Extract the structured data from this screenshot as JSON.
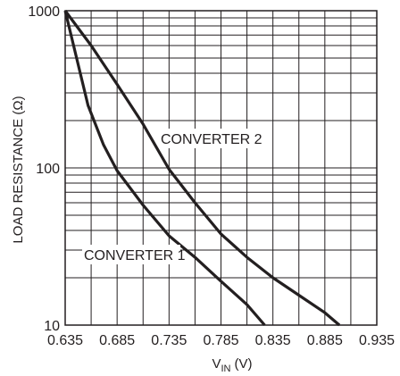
{
  "chart_data": {
    "type": "line",
    "title": "",
    "xlabel": {
      "main": "V",
      "sub": "IN",
      "unit": "(V)"
    },
    "ylabel": "LOAD RESISTANCE (Ω)",
    "xlim": [
      0.635,
      0.935
    ],
    "ylim": [
      10,
      1000
    ],
    "y_scale": "log",
    "grid": true,
    "x_ticks": [
      0.635,
      0.685,
      0.735,
      0.785,
      0.835,
      0.885,
      0.935
    ],
    "x_tick_labels": [
      "0.635",
      "0.685",
      "0.735",
      "0.785",
      "0.835",
      "0.885",
      "0.935"
    ],
    "y_tick_labels": [
      {
        "value": 10,
        "label": "10"
      },
      {
        "value": 100,
        "label": "100"
      },
      {
        "value": 1000,
        "label": "1000"
      }
    ],
    "series": [
      {
        "name": "CONVERTER 1",
        "points": [
          {
            "x": 0.635,
            "y": 1000
          },
          {
            "x": 0.646,
            "y": 500
          },
          {
            "x": 0.657,
            "y": 250
          },
          {
            "x": 0.672,
            "y": 140
          },
          {
            "x": 0.685,
            "y": 96
          },
          {
            "x": 0.71,
            "y": 58
          },
          {
            "x": 0.735,
            "y": 37
          },
          {
            "x": 0.76,
            "y": 27
          },
          {
            "x": 0.785,
            "y": 19
          },
          {
            "x": 0.81,
            "y": 13.5
          },
          {
            "x": 0.827,
            "y": 10
          }
        ]
      },
      {
        "name": "CONVERTER 2",
        "points": [
          {
            "x": 0.635,
            "y": 1000
          },
          {
            "x": 0.66,
            "y": 600
          },
          {
            "x": 0.685,
            "y": 340
          },
          {
            "x": 0.71,
            "y": 190
          },
          {
            "x": 0.735,
            "y": 98
          },
          {
            "x": 0.76,
            "y": 60
          },
          {
            "x": 0.785,
            "y": 38
          },
          {
            "x": 0.81,
            "y": 27
          },
          {
            "x": 0.835,
            "y": 20
          },
          {
            "x": 0.86,
            "y": 15.5
          },
          {
            "x": 0.885,
            "y": 12
          },
          {
            "x": 0.899,
            "y": 10
          }
        ]
      }
    ]
  },
  "colors": {
    "line": "#231f20",
    "grid": "#231f20",
    "background": "#ffffff"
  }
}
